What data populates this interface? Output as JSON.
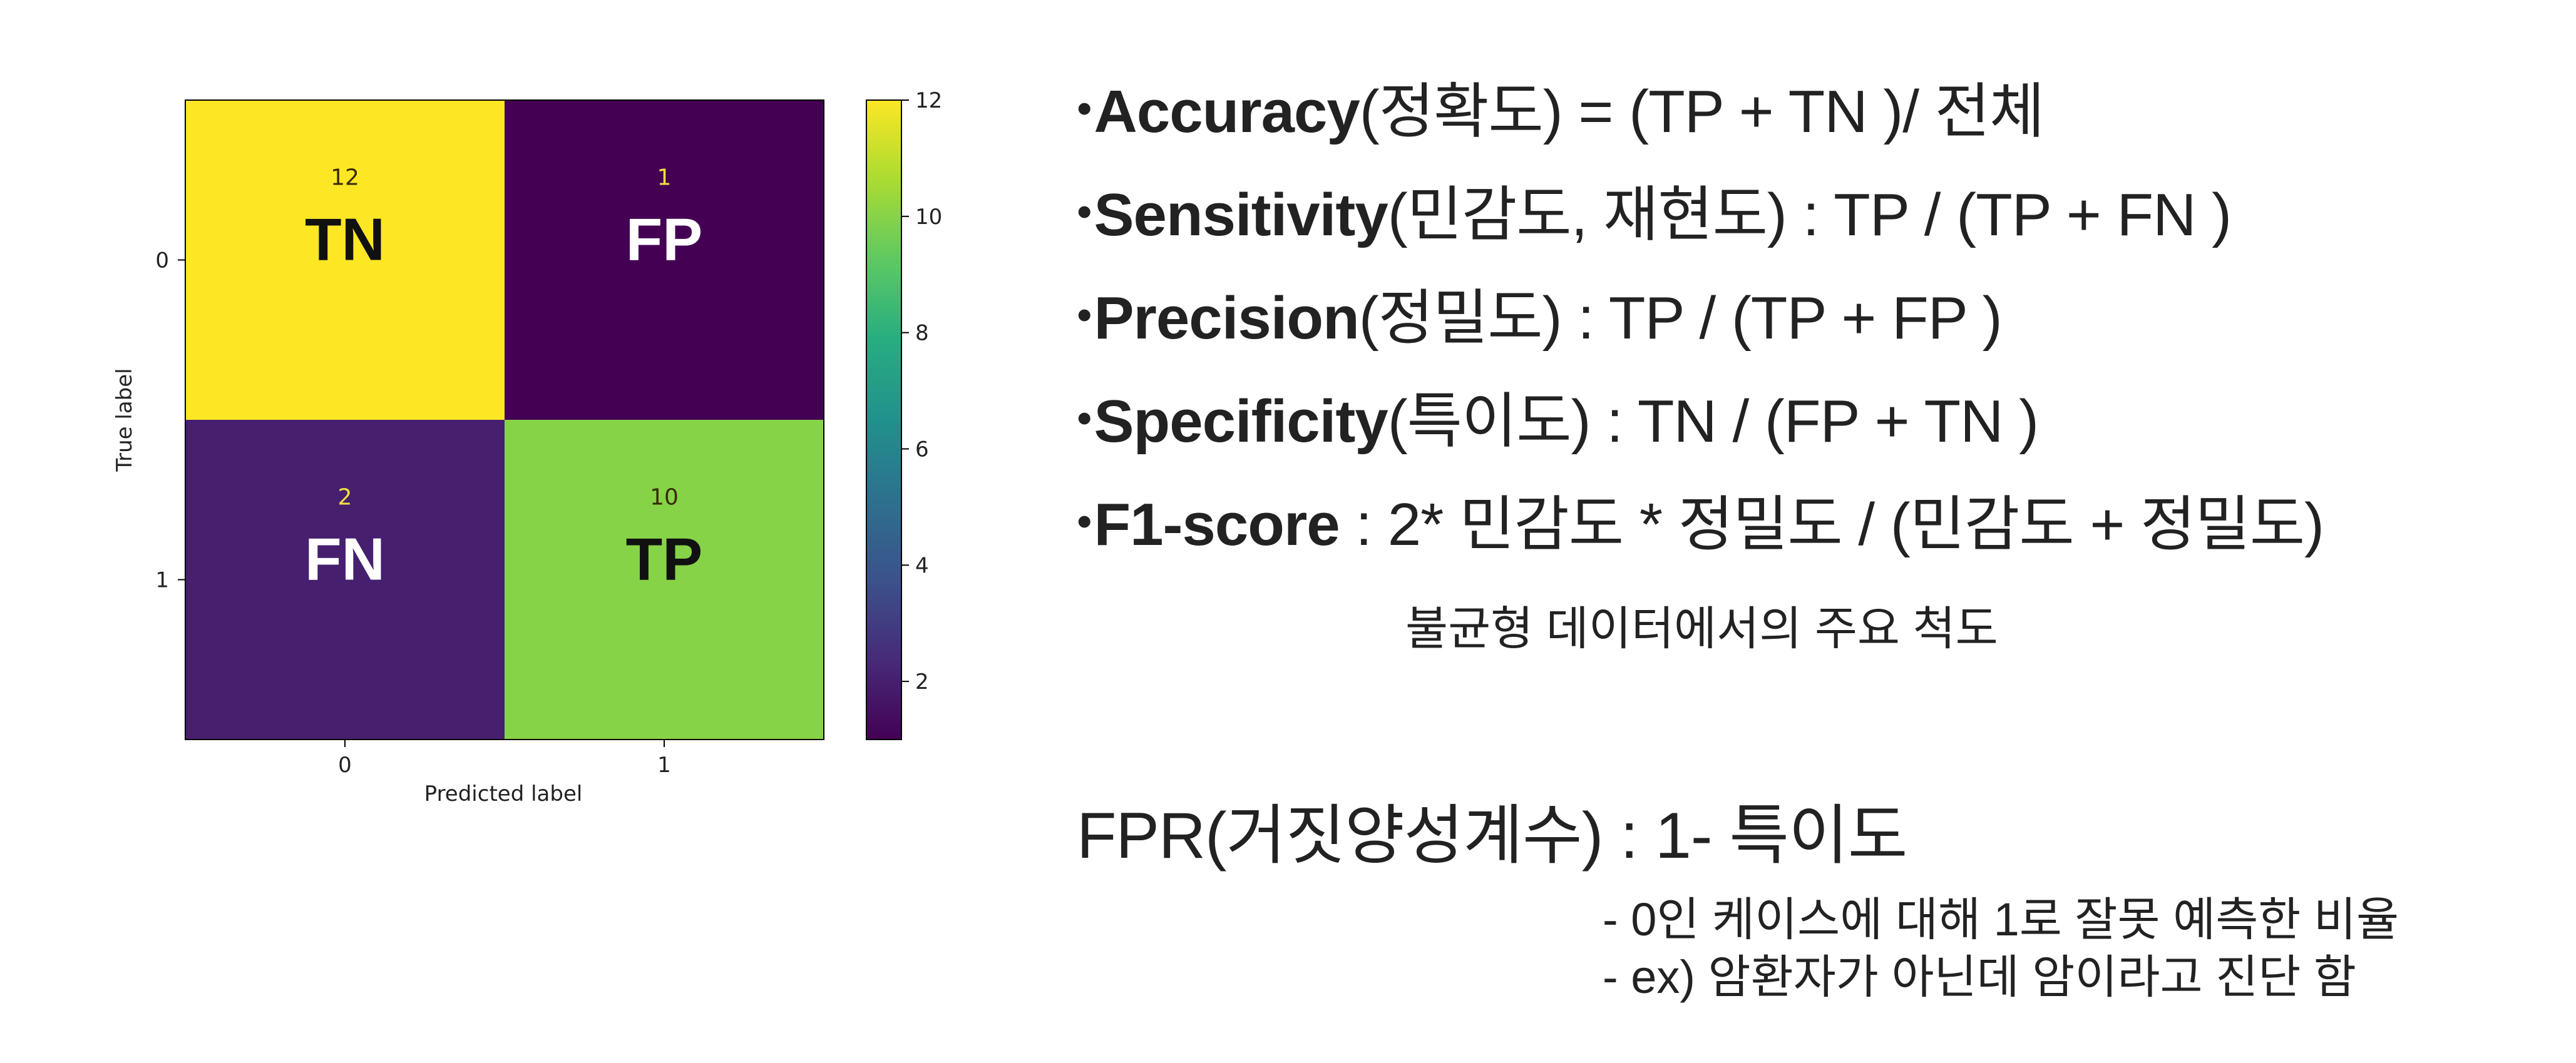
{
  "chart_data": {
    "type": "heatmap",
    "xlabel": "Predicted label",
    "ylabel": "True label",
    "x_categories": [
      "0",
      "1"
    ],
    "y_categories": [
      "0",
      "1"
    ],
    "values": [
      [
        12,
        1
      ],
      [
        2,
        10
      ]
    ],
    "cell_labels": [
      [
        "TN",
        "FP"
      ],
      [
        "FN",
        "TP"
      ]
    ],
    "colormap": "viridis",
    "colorbar_ticks": [
      "2",
      "4",
      "6",
      "8",
      "10",
      "12"
    ],
    "colorbar_range": [
      1,
      12
    ]
  },
  "metrics": [
    {
      "name": "Accuracy",
      "formula": "(정확도) = (TP + TN )/ 전체"
    },
    {
      "name": "Sensitivity",
      "formula": "(민감도, 재현도) : TP / (TP + FN )"
    },
    {
      "name": "Precision",
      "formula": "(정밀도) : TP / (TP + FP )"
    },
    {
      "name": "Specificity",
      "formula": "(특이도) : TN / (FP + TN )"
    },
    {
      "name": "F1-score",
      "formula": " : 2* 민감도 * 정밀도 / (민감도 + 정밀도)"
    }
  ],
  "bullet": "•",
  "imbalanced_note": "불균형 데이터에서의 주요 척도",
  "fpr_title": "FPR(거짓양성계수) : 1- 특이도",
  "fpr_notes": [
    "- 0인 케이스에 대해 1로 잘못 예측한 비율",
    "- ex) 암환자가 아닌데 암이라고 진단 함"
  ]
}
